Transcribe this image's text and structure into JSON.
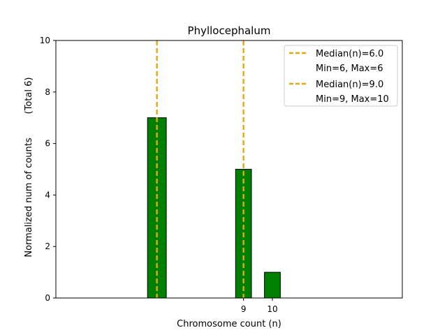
{
  "chart_data": {
    "type": "bar",
    "title": "Phyllocephalum",
    "xlabel": "Chromosome count (n)",
    "ylabel": "Normalized num of counts",
    "ylabel_total": "(Total 6)",
    "ylim": [
      0,
      10
    ],
    "xlim": [
      2.5,
      14.5
    ],
    "yticks": [
      0,
      2,
      4,
      6,
      8,
      10
    ],
    "xticks": [
      9,
      10
    ],
    "bars": [
      {
        "x": 6,
        "value": 7,
        "width": 0.65
      },
      {
        "x": 9,
        "value": 5,
        "width": 0.55
      },
      {
        "x": 10,
        "value": 1,
        "width": 0.55
      }
    ],
    "medians": [
      {
        "x": 6,
        "label": "Median(n)=6.0",
        "range_label": "Min=6, Max=6"
      },
      {
        "x": 9,
        "label": "Median(n)=9.0",
        "range_label": "Min=9, Max=10"
      }
    ],
    "legend_position": "top-right",
    "bar_color": "#008000",
    "median_color": "#e8a80c"
  }
}
